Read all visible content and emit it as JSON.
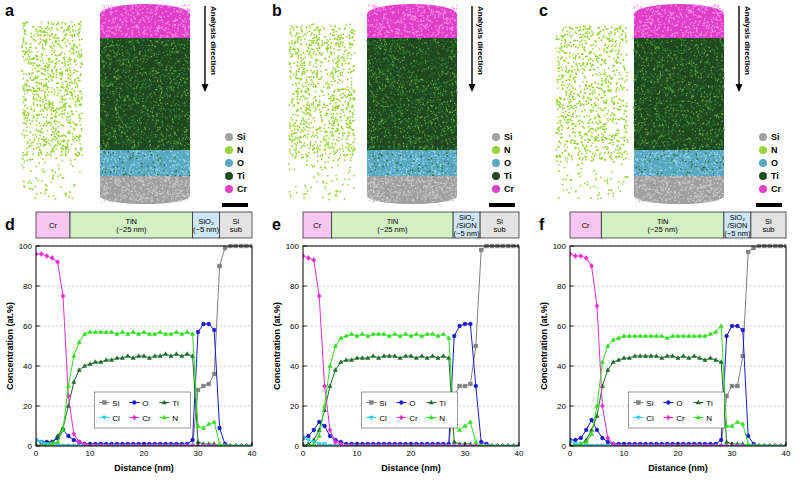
{
  "reconstructions": {
    "panels": [
      "a",
      "b",
      "c"
    ],
    "annotation": "Analysis direction",
    "legend": [
      {
        "name": "Si",
        "color": "#a0a0a0"
      },
      {
        "name": "N",
        "color": "#9bd43a"
      },
      {
        "name": "O",
        "color": "#5aa7c0"
      },
      {
        "name": "Ti",
        "color": "#1f4a1f"
      },
      {
        "name": "Cr",
        "color": "#e040c8"
      }
    ]
  },
  "chart_data": [
    {
      "type": "line",
      "panel": "d",
      "x_label": "Distance (nm)",
      "y_label": "Concentration (at.%)",
      "xlim": [
        0,
        40
      ],
      "ylim": [
        0,
        100
      ],
      "xticks": [
        0,
        10,
        20,
        30,
        40
      ],
      "yticks": [
        0,
        20,
        40,
        60,
        80,
        100
      ],
      "grid": true,
      "legend": "bottom",
      "layers": [
        {
          "lines": [
            "Cr"
          ],
          "start": 0,
          "end": 6.3,
          "color": "#f7c6f0"
        },
        {
          "lines": [
            "TiN",
            "(~25 nm)"
          ],
          "start": 6.3,
          "end": 29,
          "color": "#d2f2c4"
        },
        {
          "lines": [
            "SiO₂",
            "(~5 nm)"
          ],
          "start": 29,
          "end": 34,
          "color": "#cfe6f7"
        },
        {
          "lines": [
            "Si",
            "sub"
          ],
          "start": 34,
          "end": 40,
          "color": "#e3e3e3"
        }
      ],
      "x": [
        0,
        1,
        2,
        3,
        4,
        5,
        6,
        7,
        8,
        9,
        10,
        11,
        12,
        13,
        14,
        15,
        16,
        17,
        18,
        19,
        20,
        21,
        22,
        23,
        24,
        25,
        26,
        27,
        28,
        29,
        30,
        31,
        32,
        33,
        34,
        35,
        36,
        37,
        38,
        39,
        40
      ],
      "series": [
        {
          "name": "Si",
          "color": "#808080",
          "marker": "square",
          "values": [
            0,
            0,
            0,
            0,
            0,
            0,
            0,
            0,
            0,
            0,
            0,
            0,
            0,
            0,
            0,
            0,
            0,
            0,
            0,
            0,
            0,
            0,
            0,
            0,
            0,
            0,
            0,
            0,
            0,
            0,
            28,
            30,
            31,
            36,
            90,
            99,
            100,
            100,
            100,
            100,
            100
          ]
        },
        {
          "name": "O",
          "color": "#1a1ad0",
          "marker": "circle",
          "values": [
            3,
            2,
            2,
            2,
            4,
            8,
            5,
            3,
            2,
            1,
            1,
            1,
            1,
            1,
            1,
            1,
            1,
            1,
            1,
            1,
            1,
            1,
            1,
            1,
            1,
            1,
            1,
            1,
            1,
            3,
            57,
            61,
            61,
            58,
            9,
            1,
            0,
            0,
            0,
            0,
            0
          ]
        },
        {
          "name": "Ti",
          "color": "#1d6b2a",
          "marker": "triangle",
          "values": [
            0,
            0,
            1,
            2,
            5,
            9,
            20,
            32,
            38,
            40,
            41,
            42,
            42,
            43,
            43,
            44,
            44,
            45,
            44,
            45,
            45,
            44,
            45,
            45,
            46,
            45,
            46,
            45,
            46,
            45,
            2,
            1,
            1,
            1,
            0,
            0,
            0,
            0,
            0,
            0,
            0
          ]
        },
        {
          "name": "Cl",
          "color": "#33ccee",
          "marker": "triangle-down",
          "values": [
            3,
            2,
            1,
            1,
            1,
            0,
            0,
            0,
            0,
            0,
            0,
            0,
            0,
            0,
            0,
            0,
            0,
            0,
            0,
            0,
            0,
            0,
            0,
            0,
            0,
            0,
            0,
            0,
            0,
            0,
            0,
            0,
            0,
            0,
            0,
            0,
            0,
            0,
            0,
            0,
            0
          ]
        },
        {
          "name": "Cr",
          "color": "#e830d0",
          "marker": "diamond",
          "values": [
            96,
            96,
            95,
            94,
            92,
            75,
            25,
            6,
            2,
            1,
            0,
            0,
            0,
            0,
            0,
            0,
            0,
            0,
            0,
            0,
            0,
            0,
            0,
            0,
            0,
            0,
            0,
            0,
            0,
            0,
            0,
            0,
            0,
            0,
            0,
            0,
            0,
            0,
            0,
            0,
            0
          ]
        },
        {
          "name": "N",
          "color": "#33dd22",
          "marker": "triangle",
          "values": [
            0,
            0,
            0,
            1,
            2,
            8,
            30,
            45,
            52,
            56,
            57,
            57,
            57,
            57,
            57,
            56,
            57,
            56,
            57,
            56,
            57,
            56,
            56,
            57,
            56,
            56,
            57,
            56,
            57,
            56,
            10,
            9,
            11,
            12,
            1,
            0,
            0,
            0,
            0,
            0,
            0
          ]
        }
      ]
    },
    {
      "type": "line",
      "panel": "e",
      "x_label": "Distance (nm)",
      "y_label": "Concentration (at.%)",
      "xlim": [
        0,
        40
      ],
      "ylim": [
        0,
        100
      ],
      "xticks": [
        0,
        10,
        20,
        30,
        40
      ],
      "yticks": [
        0,
        20,
        40,
        60,
        80,
        100
      ],
      "grid": true,
      "legend": "bottom",
      "layers": [
        {
          "lines": [
            "Cr"
          ],
          "start": 0,
          "end": 5.3,
          "color": "#f7c6f0"
        },
        {
          "lines": [
            "TiN",
            "(~25 nm)"
          ],
          "start": 5.3,
          "end": 27.8,
          "color": "#d2f2c4"
        },
        {
          "lines": [
            "SiO₂",
            "/SiON",
            "(~5 nm)"
          ],
          "start": 27.8,
          "end": 32.8,
          "color": "#cfe6f7"
        },
        {
          "lines": [
            "Si",
            "sub"
          ],
          "start": 32.8,
          "end": 40,
          "color": "#e3e3e3"
        }
      ],
      "x": [
        0,
        1,
        2,
        3,
        4,
        5,
        6,
        7,
        8,
        9,
        10,
        11,
        12,
        13,
        14,
        15,
        16,
        17,
        18,
        19,
        20,
        21,
        22,
        23,
        24,
        25,
        26,
        27,
        28,
        29,
        30,
        31,
        32,
        33,
        34,
        35,
        36,
        37,
        38,
        39,
        40
      ],
      "series": [
        {
          "name": "Si",
          "color": "#808080",
          "marker": "square",
          "values": [
            0,
            0,
            0,
            0,
            0,
            0,
            0,
            0,
            0,
            0,
            0,
            0,
            0,
            0,
            0,
            0,
            0,
            0,
            0,
            0,
            0,
            0,
            0,
            0,
            0,
            0,
            0,
            0,
            25,
            30,
            30,
            31,
            50,
            98,
            100,
            100,
            100,
            100,
            100,
            100,
            100
          ]
        },
        {
          "name": "O",
          "color": "#1a1ad0",
          "marker": "circle",
          "values": [
            4,
            5,
            8,
            12,
            10,
            5,
            3,
            2,
            1,
            1,
            1,
            1,
            1,
            1,
            1,
            1,
            1,
            1,
            1,
            1,
            1,
            1,
            1,
            1,
            1,
            1,
            1,
            1,
            55,
            60,
            61,
            61,
            30,
            2,
            1,
            0,
            0,
            0,
            0,
            0,
            0
          ]
        },
        {
          "name": "Ti",
          "color": "#1d6b2a",
          "marker": "triangle",
          "values": [
            0,
            1,
            3,
            8,
            18,
            30,
            38,
            42,
            43,
            43,
            44,
            44,
            44,
            45,
            44,
            45,
            45,
            45,
            44,
            45,
            45,
            44,
            45,
            44,
            45,
            44,
            45,
            44,
            2,
            1,
            1,
            1,
            0,
            0,
            0,
            0,
            0,
            0,
            0,
            0,
            0
          ]
        },
        {
          "name": "Cl",
          "color": "#33ccee",
          "marker": "triangle-down",
          "values": [
            4,
            3,
            2,
            1,
            1,
            0,
            0,
            0,
            0,
            0,
            0,
            0,
            0,
            0,
            0,
            0,
            0,
            0,
            0,
            0,
            0,
            0,
            0,
            0,
            0,
            0,
            0,
            0,
            0,
            0,
            0,
            0,
            0,
            0,
            0,
            0,
            0,
            0,
            0,
            0,
            0
          ]
        },
        {
          "name": "Cr",
          "color": "#e830d0",
          "marker": "diamond",
          "values": [
            95,
            94,
            93,
            75,
            30,
            8,
            2,
            1,
            0,
            0,
            0,
            0,
            0,
            0,
            0,
            0,
            0,
            0,
            0,
            0,
            0,
            0,
            0,
            0,
            0,
            0,
            0,
            0,
            0,
            0,
            0,
            0,
            0,
            0,
            0,
            0,
            0,
            0,
            0,
            0,
            0
          ]
        },
        {
          "name": "N",
          "color": "#33dd22",
          "marker": "triangle",
          "values": [
            0,
            0,
            1,
            5,
            20,
            40,
            50,
            54,
            55,
            56,
            55,
            56,
            55,
            56,
            56,
            56,
            55,
            56,
            55,
            56,
            55,
            56,
            55,
            56,
            56,
            55,
            56,
            54,
            10,
            8,
            10,
            12,
            2,
            0,
            0,
            0,
            0,
            0,
            0,
            0,
            0
          ]
        }
      ]
    },
    {
      "type": "line",
      "panel": "f",
      "x_label": "Distance (nm)",
      "y_label": "Concentration (at.%)",
      "xlim": [
        0,
        40
      ],
      "ylim": [
        0,
        100
      ],
      "xticks": [
        0,
        10,
        20,
        30,
        40
      ],
      "yticks": [
        0,
        20,
        40,
        60,
        80,
        100
      ],
      "grid": true,
      "legend": "bottom",
      "layers": [
        {
          "lines": [
            "Cr"
          ],
          "start": 0,
          "end": 5.8,
          "color": "#f7c6f0"
        },
        {
          "lines": [
            "TiN",
            "(~25 nm)"
          ],
          "start": 5.8,
          "end": 28.5,
          "color": "#d2f2c4"
        },
        {
          "lines": [
            "SiO₂",
            "/SiON",
            "(~5 nm)"
          ],
          "start": 28.5,
          "end": 33.5,
          "color": "#cfe6f7"
        },
        {
          "lines": [
            "Si",
            "sub"
          ],
          "start": 33.5,
          "end": 40,
          "color": "#e3e3e3"
        }
      ],
      "x": [
        0,
        1,
        2,
        3,
        4,
        5,
        6,
        7,
        8,
        9,
        10,
        11,
        12,
        13,
        14,
        15,
        16,
        17,
        18,
        19,
        20,
        21,
        22,
        23,
        24,
        25,
        26,
        27,
        28,
        29,
        30,
        31,
        32,
        33,
        34,
        35,
        36,
        37,
        38,
        39,
        40
      ],
      "series": [
        {
          "name": "Si",
          "color": "#808080",
          "marker": "square",
          "values": [
            0,
            0,
            0,
            0,
            0,
            0,
            0,
            0,
            0,
            0,
            0,
            0,
            0,
            0,
            0,
            0,
            0,
            0,
            0,
            0,
            0,
            0,
            0,
            0,
            0,
            0,
            0,
            0,
            0,
            25,
            30,
            30,
            45,
            97,
            99,
            100,
            100,
            100,
            100,
            100,
            100
          ]
        },
        {
          "name": "O",
          "color": "#1a1ad0",
          "marker": "circle",
          "values": [
            3,
            3,
            4,
            8,
            13,
            8,
            4,
            2,
            1,
            1,
            1,
            1,
            1,
            1,
            1,
            1,
            1,
            1,
            1,
            1,
            1,
            1,
            1,
            1,
            1,
            1,
            1,
            1,
            3,
            55,
            60,
            60,
            58,
            5,
            1,
            0,
            0,
            0,
            0,
            0,
            0
          ]
        },
        {
          "name": "Ti",
          "color": "#1d6b2a",
          "marker": "triangle",
          "values": [
            0,
            0,
            1,
            3,
            8,
            15,
            30,
            38,
            42,
            43,
            44,
            44,
            45,
            45,
            45,
            45,
            45,
            44,
            45,
            45,
            44,
            45,
            44,
            45,
            44,
            43,
            44,
            43,
            42,
            2,
            1,
            1,
            1,
            0,
            0,
            0,
            0,
            0,
            0,
            0,
            0
          ]
        },
        {
          "name": "Cl",
          "color": "#33ccee",
          "marker": "triangle-down",
          "values": [
            2,
            1,
            1,
            0,
            0,
            0,
            0,
            0,
            0,
            0,
            0,
            0,
            0,
            0,
            0,
            0,
            0,
            0,
            0,
            0,
            0,
            0,
            0,
            0,
            0,
            0,
            0,
            0,
            0,
            0,
            0,
            0,
            0,
            0,
            0,
            0,
            0,
            0,
            0,
            0,
            0
          ]
        },
        {
          "name": "Cr",
          "color": "#e830d0",
          "marker": "diamond",
          "values": [
            96,
            95,
            95,
            94,
            90,
            70,
            20,
            4,
            1,
            0,
            0,
            0,
            0,
            0,
            0,
            0,
            0,
            0,
            0,
            0,
            0,
            0,
            0,
            0,
            0,
            0,
            0,
            0,
            0,
            0,
            0,
            0,
            0,
            0,
            0,
            0,
            0,
            0,
            0,
            0,
            0
          ]
        },
        {
          "name": "N",
          "color": "#33dd22",
          "marker": "triangle",
          "values": [
            0,
            0,
            1,
            2,
            6,
            20,
            42,
            50,
            53,
            54,
            55,
            55,
            55,
            55,
            55,
            55,
            55,
            55,
            54,
            55,
            55,
            55,
            55,
            55,
            55,
            55,
            56,
            57,
            60,
            10,
            10,
            12,
            11,
            1,
            0,
            0,
            0,
            0,
            0,
            0,
            0
          ]
        }
      ]
    }
  ]
}
